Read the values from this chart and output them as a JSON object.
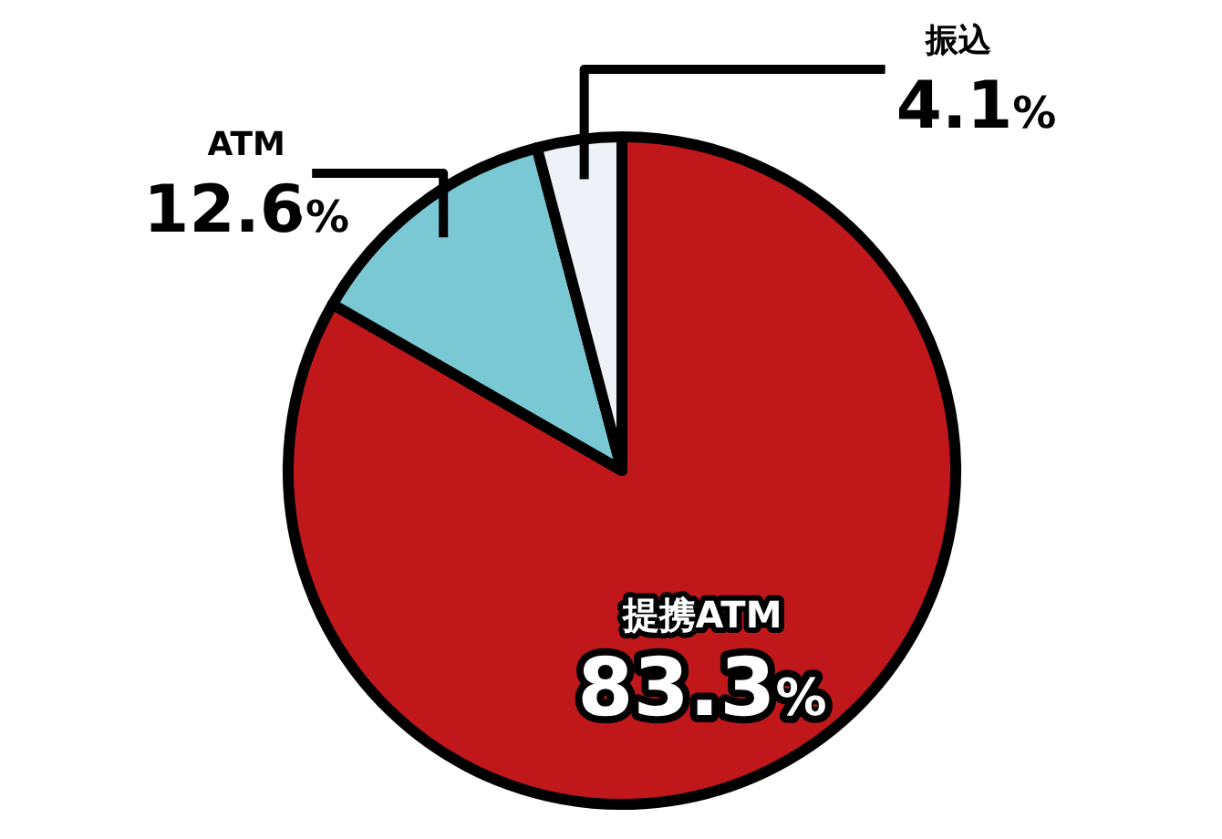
{
  "chart_data": {
    "type": "pie",
    "categories": [
      "提携ATM",
      "ATM",
      "振込"
    ],
    "values": [
      83.3,
      12.6,
      4.1
    ],
    "colors": [
      "#c0181a",
      "#7ac8d4",
      "#eef2f6"
    ],
    "value_labels": [
      "83.3%",
      "12.6%",
      "4.1%"
    ]
  }
}
